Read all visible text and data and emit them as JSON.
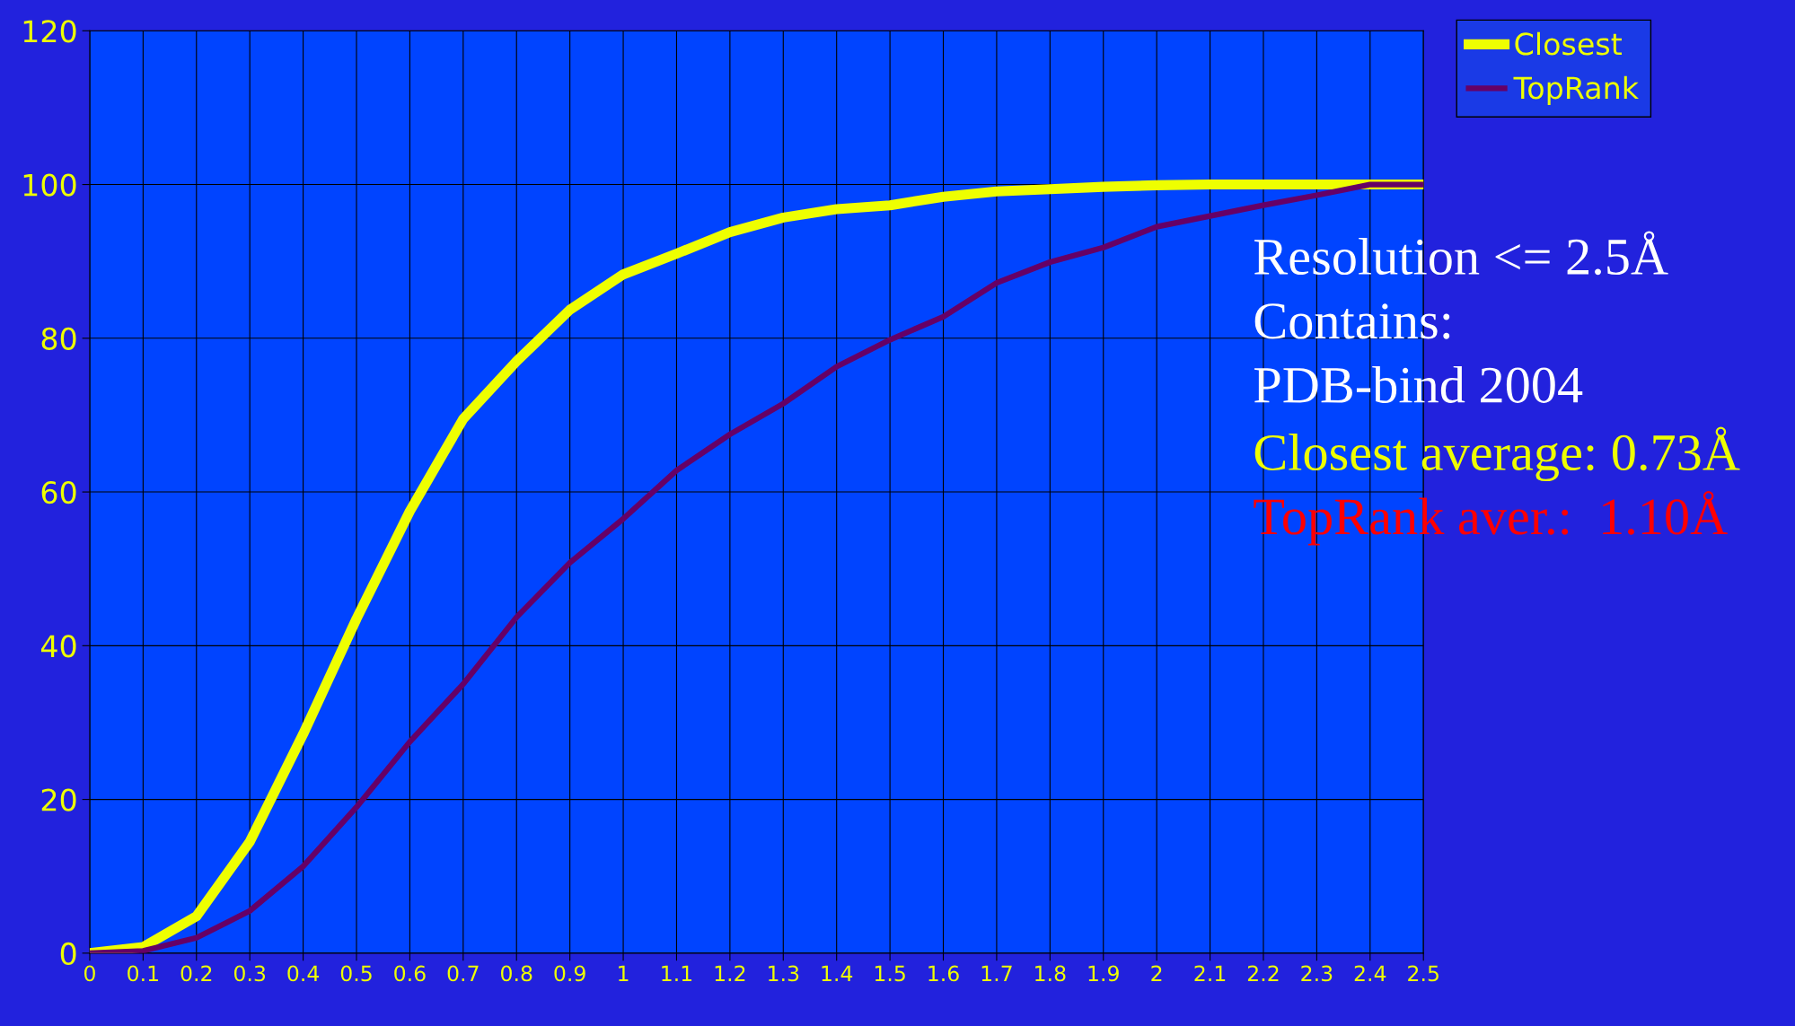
{
  "chart_data": {
    "type": "line",
    "x": [
      0,
      0.1,
      0.2,
      0.3,
      0.4,
      0.5,
      0.6,
      0.7,
      0.8,
      0.9,
      1,
      1.1,
      1.2,
      1.3,
      1.4,
      1.5,
      1.6,
      1.7,
      1.8,
      1.9,
      2,
      2.1,
      2.2,
      2.3,
      2.4,
      2.5
    ],
    "series": [
      {
        "name": "Closest",
        "color": "#eeff00",
        "values": [
          0,
          0.8,
          4.8,
          14.5,
          28.5,
          43.5,
          57.5,
          69.5,
          77,
          83.7,
          88.3,
          91,
          93.8,
          95.7,
          96.8,
          97.3,
          98.4,
          99.1,
          99.4,
          99.7,
          99.9,
          100,
          100,
          100,
          100,
          100
        ]
      },
      {
        "name": "TopRank",
        "color": "#660066",
        "values": [
          0,
          0.3,
          2,
          5.5,
          11.3,
          19,
          27.5,
          35,
          43.7,
          50.8,
          56.5,
          62.8,
          67.5,
          71.5,
          76.3,
          79.8,
          82.8,
          87.2,
          89.9,
          91.8,
          94.5,
          95.9,
          97.3,
          98.6,
          100,
          100
        ]
      }
    ],
    "xlim": [
      0,
      2.5
    ],
    "xticks": [
      0,
      0.1,
      0.2,
      0.3,
      0.4,
      0.5,
      0.6,
      0.7,
      0.8,
      0.9,
      1,
      1.1,
      1.2,
      1.3,
      1.4,
      1.5,
      1.6,
      1.7,
      1.8,
      1.9,
      2,
      2.1,
      2.2,
      2.3,
      2.4,
      2.5
    ],
    "ylim": [
      0,
      120
    ],
    "yticks": [
      0,
      20,
      40,
      60,
      80,
      100,
      120
    ],
    "grid": true,
    "legend": "top right",
    "marker": "none",
    "line_style": "solid",
    "annotations": [
      "Resolution <= 2.5Å",
      "Contains:",
      "PDB-bind 2004",
      "Closest average: 0.73Å",
      "TopRank aver.:  1.10Å"
    ]
  }
}
